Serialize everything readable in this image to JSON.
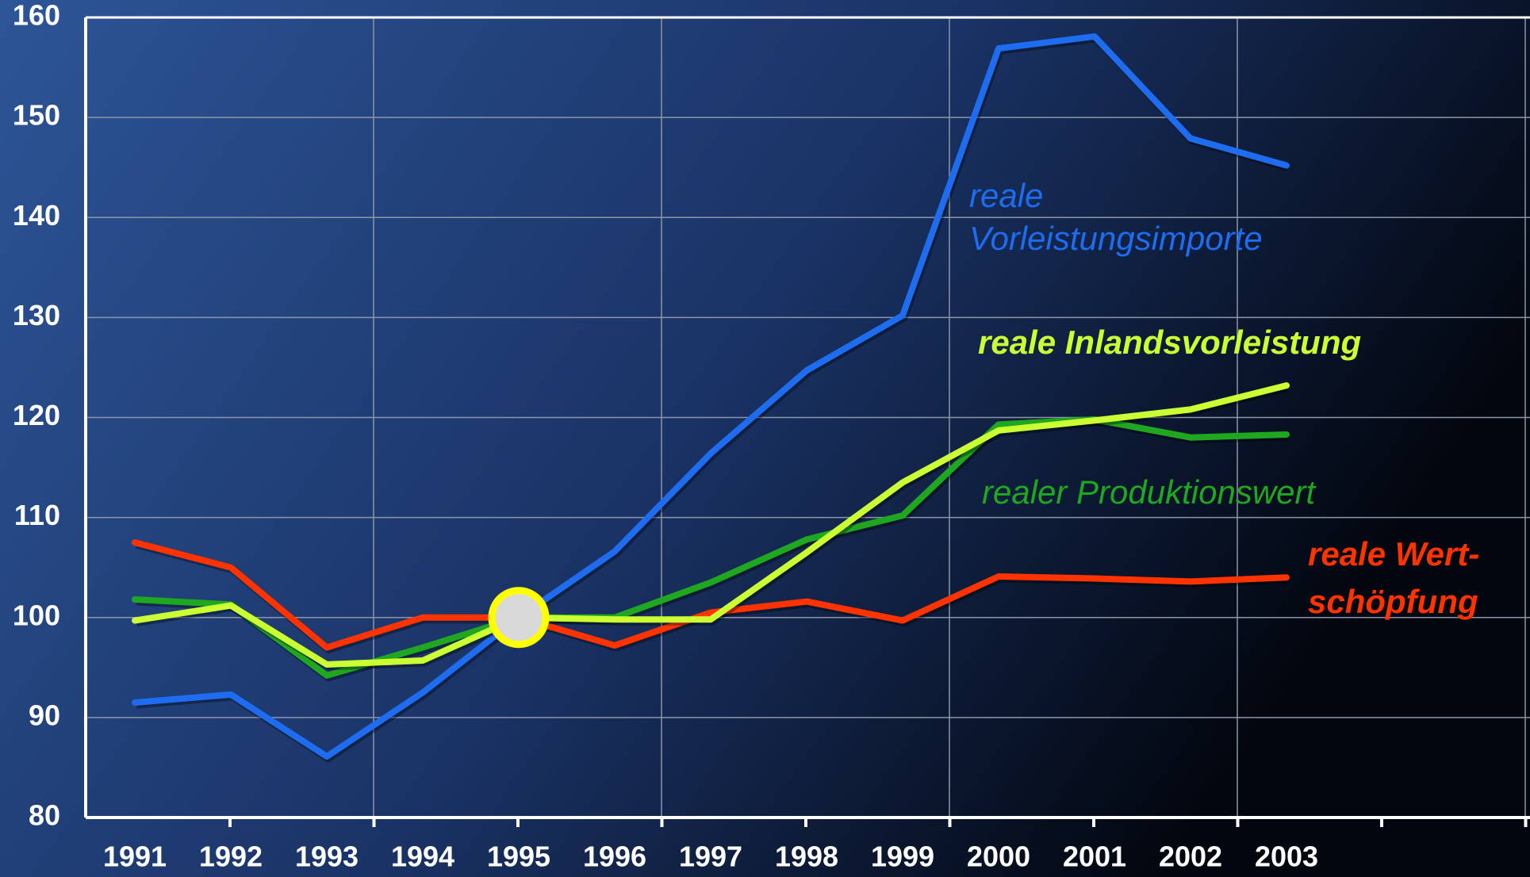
{
  "chart_data": {
    "type": "line",
    "categories": [
      "1991",
      "1992",
      "1993",
      "1994",
      "1995",
      "1996",
      "1997",
      "1998",
      "1999",
      "2000",
      "2001",
      "2002",
      "2003"
    ],
    "series": [
      {
        "name": "reale\nVorleistungsimporte",
        "color": "#1e6cf0",
        "values": [
          91.5,
          92.3,
          86.1,
          92.5,
          100,
          106.6,
          116.4,
          124.7,
          130.2,
          156.9,
          158.1,
          147.9,
          145.2
        ]
      },
      {
        "name": "reale Wert-\nschöpfung",
        "color": "#ff3300",
        "values": [
          107.5,
          105,
          97,
          100,
          100,
          97.2,
          100.5,
          101.6,
          99.7,
          104.1,
          103.9,
          103.6,
          104
        ]
      },
      {
        "name": "realer Produktionswert",
        "color": "#1fa81f",
        "values": [
          101.8,
          101.3,
          94.2,
          97,
          100,
          100,
          103.5,
          107.8,
          110.2,
          119.3,
          119.8,
          118,
          118.3
        ]
      },
      {
        "name": "reale Inlandsvorleistung",
        "color": "#ccff33",
        "values": [
          99.7,
          101.2,
          95.3,
          95.7,
          100,
          99.8,
          99.8,
          106.5,
          113.5,
          118.7,
          119.7,
          120.8,
          123.2
        ]
      }
    ],
    "ylim": [
      80,
      160
    ],
    "yticks": [
      80,
      90,
      100,
      110,
      120,
      130,
      140,
      150,
      160
    ],
    "grid": true
  }
}
